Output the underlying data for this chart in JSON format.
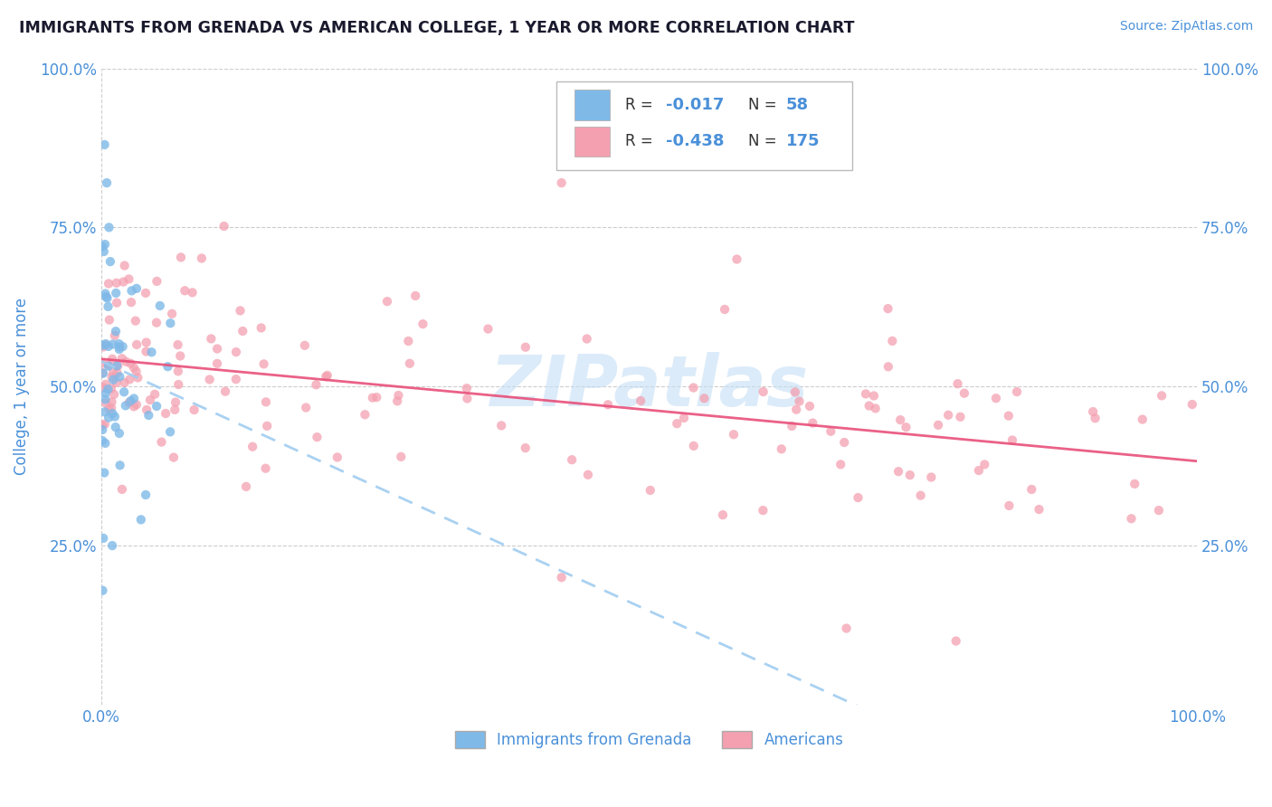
{
  "title": "IMMIGRANTS FROM GRENADA VS AMERICAN COLLEGE, 1 YEAR OR MORE CORRELATION CHART",
  "source_text": "Source: ZipAtlas.com",
  "ylabel": "College, 1 year or more",
  "xlim": [
    0.0,
    1.0
  ],
  "ylim": [
    0.0,
    1.0
  ],
  "color_grenada": "#7fb9e8",
  "color_american": "#f4a0b0",
  "color_line_grenada": "#a0ccf0",
  "color_line_american": "#e8507a",
  "background_color": "#ffffff",
  "grid_color": "#cccccc",
  "title_color": "#1a1a2e",
  "tick_label_color": "#4a90d9",
  "ylabel_color": "#4a90d9",
  "watermark_color": "#c5dff5",
  "legend_r1_val": "-0.017",
  "legend_n1_val": "58",
  "legend_r2_val": "-0.438",
  "legend_n2_val": "175",
  "seed_grenada": 42,
  "seed_american": 99
}
